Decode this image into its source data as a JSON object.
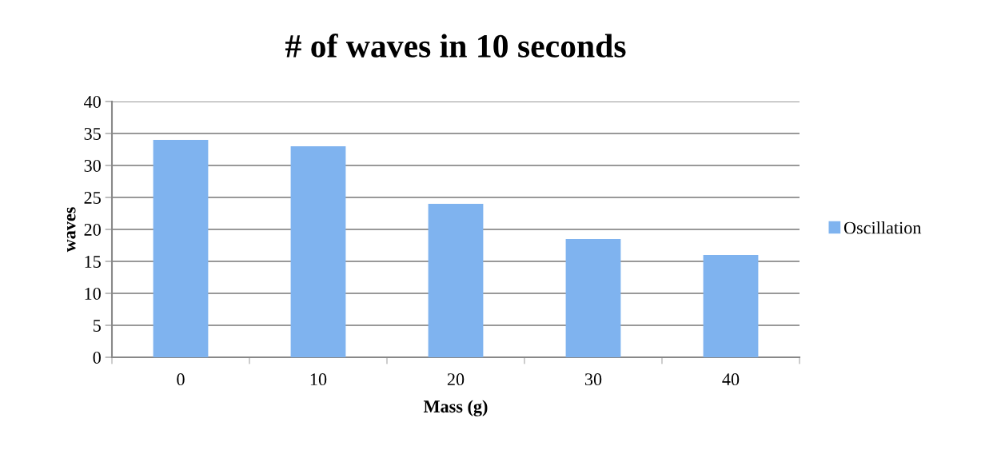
{
  "chart_data": {
    "type": "bar",
    "title": "# of waves in 10 seconds",
    "xlabel": "Mass (g)",
    "ylabel": "waves",
    "categories": [
      "0",
      "10",
      "20",
      "30",
      "40"
    ],
    "series": [
      {
        "name": "Oscillation",
        "color": "#7fb3ef",
        "values": [
          34,
          33,
          24,
          18.5,
          16
        ]
      }
    ],
    "ylim": [
      0,
      40
    ],
    "yticks": [
      0,
      5,
      10,
      15,
      20,
      25,
      30,
      35,
      40
    ],
    "grid": "y",
    "legend": "right"
  }
}
